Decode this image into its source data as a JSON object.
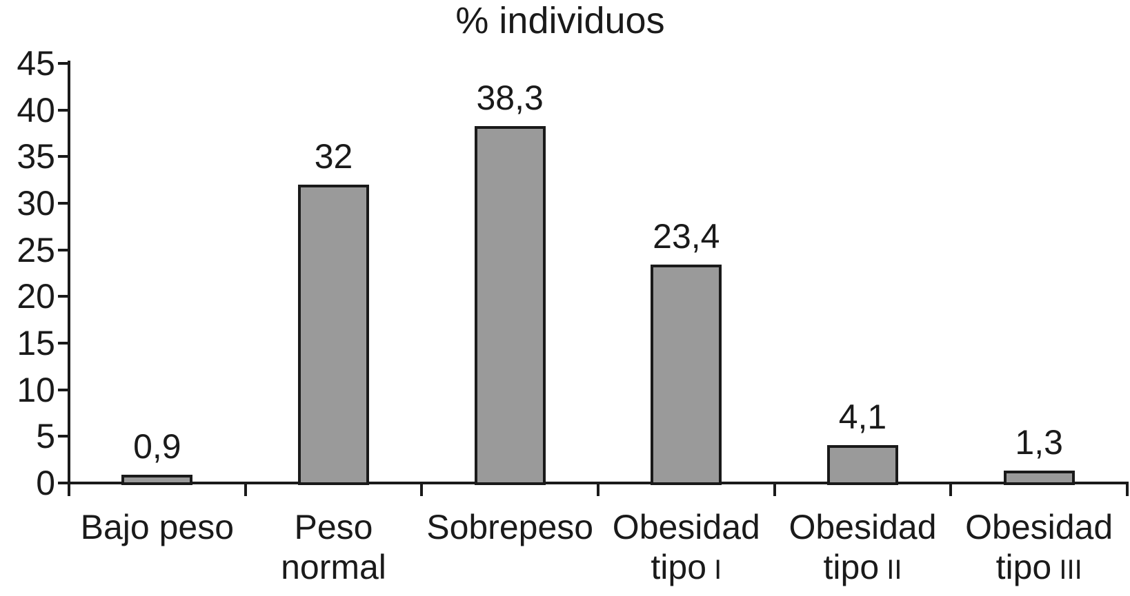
{
  "title": "% individuos",
  "chart_data": {
    "type": "bar",
    "title": "% individuos",
    "categories": [
      "Bajo peso",
      "Peso normal",
      "Sobrepeso",
      "Obesidad tipo I",
      "Obesidad tipo II",
      "Obesidad tipo III"
    ],
    "category_labels": [
      {
        "lines": [
          "Bajo peso"
        ],
        "numeral": ""
      },
      {
        "lines": [
          "Peso",
          "normal"
        ],
        "numeral": ""
      },
      {
        "lines": [
          "Sobrepeso"
        ],
        "numeral": ""
      },
      {
        "lines": [
          "Obesidad",
          "tipo"
        ],
        "numeral": "I"
      },
      {
        "lines": [
          "Obesidad",
          "tipo"
        ],
        "numeral": "II"
      },
      {
        "lines": [
          "Obesidad",
          "tipo"
        ],
        "numeral": "III"
      }
    ],
    "values": [
      0.9,
      32,
      38.3,
      23.4,
      4.1,
      1.3
    ],
    "value_labels": [
      "0,9",
      "32",
      "38,3",
      "23,4",
      "4,1",
      "1,3"
    ],
    "xlabel": "",
    "ylabel": "",
    "ylim": [
      0,
      45
    ],
    "y_ticks": [
      0,
      5,
      10,
      15,
      20,
      25,
      30,
      35,
      40,
      45
    ],
    "y_tick_labels": [
      "0",
      "5",
      "10",
      "15",
      "20",
      "25",
      "30",
      "35",
      "40",
      "45"
    ],
    "grid": false,
    "legend": "none",
    "bar_fill": "#9a9a9a",
    "bar_stroke": "#1a1a1a",
    "axis_color": "#1a1a1a",
    "text_color": "#1a1a1a",
    "background": "#ffffff"
  }
}
